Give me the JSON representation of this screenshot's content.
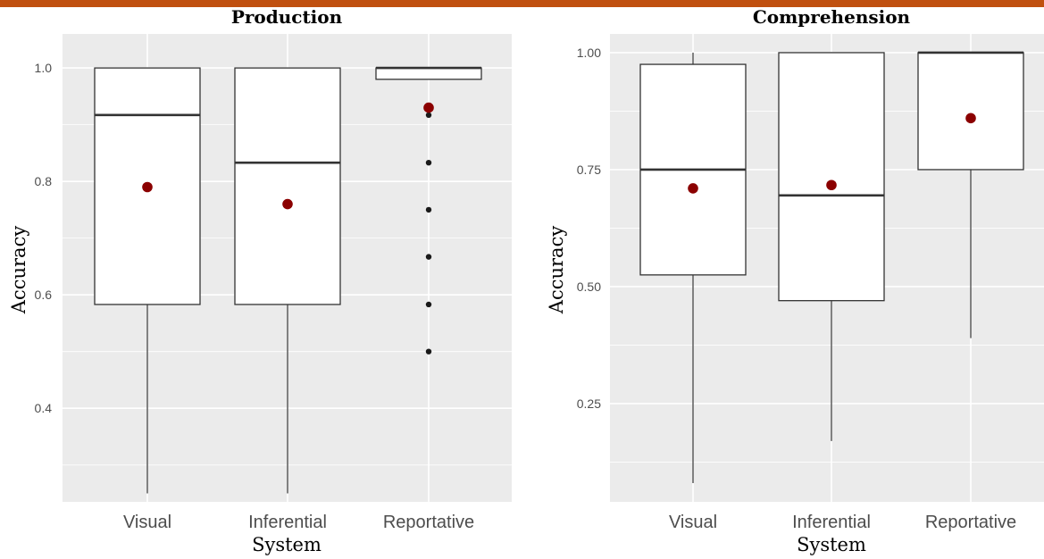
{
  "colors": {
    "accent_bar": "#c0500f",
    "panel_bg": "#ebebeb",
    "grid": "#ffffff",
    "mean_point": "#8b0000",
    "outlier": "#1a1a1a",
    "box_stroke": "#333333"
  },
  "chart_data": [
    {
      "type": "box",
      "title": "Production",
      "xlabel": "System",
      "ylabel": "Accuracy",
      "ylim": [
        0.235,
        1.06
      ],
      "yticks": [
        {
          "value": 0.4,
          "label": "0.4"
        },
        {
          "value": 0.6,
          "label": "0.6"
        },
        {
          "value": 0.8,
          "label": "0.8"
        },
        {
          "value": 1.0,
          "label": "1.0"
        }
      ],
      "grid": true,
      "categories": [
        "Visual",
        "Inferential",
        "Reportative"
      ],
      "boxes": [
        {
          "category": "Visual",
          "whisker_low": 0.25,
          "q1": 0.583,
          "median": 0.917,
          "q3": 1.0,
          "whisker_high": 1.0,
          "mean": 0.79,
          "outliers": []
        },
        {
          "category": "Inferential",
          "whisker_low": 0.25,
          "q1": 0.583,
          "median": 0.833,
          "q3": 1.0,
          "whisker_high": 1.0,
          "mean": 0.76,
          "outliers": []
        },
        {
          "category": "Reportative",
          "whisker_low": 0.98,
          "q1": 0.98,
          "median": 1.0,
          "q3": 1.0,
          "whisker_high": 1.0,
          "mean": 0.93,
          "outliers": [
            0.917,
            0.833,
            0.75,
            0.667,
            0.583,
            0.5
          ]
        }
      ]
    },
    {
      "type": "box",
      "title": "Comprehension",
      "xlabel": "System",
      "ylabel": "Accuracy",
      "ylim": [
        0.04,
        1.04
      ],
      "yticks": [
        {
          "value": 0.25,
          "label": "0.25"
        },
        {
          "value": 0.5,
          "label": "0.50"
        },
        {
          "value": 0.75,
          "label": "0.75"
        },
        {
          "value": 1.0,
          "label": "1.00"
        }
      ],
      "grid": true,
      "categories": [
        "Visual",
        "Inferential",
        "Reportative"
      ],
      "boxes": [
        {
          "category": "Visual",
          "whisker_low": 0.08,
          "q1": 0.525,
          "median": 0.75,
          "q3": 0.975,
          "whisker_high": 1.0,
          "mean": 0.71,
          "outliers": []
        },
        {
          "category": "Inferential",
          "whisker_low": 0.17,
          "q1": 0.47,
          "median": 0.695,
          "q3": 1.0,
          "whisker_high": 1.0,
          "mean": 0.717,
          "outliers": []
        },
        {
          "category": "Reportative",
          "whisker_low": 0.39,
          "q1": 0.75,
          "median": 1.0,
          "q3": 1.0,
          "whisker_high": 1.0,
          "mean": 0.86,
          "outliers": []
        }
      ]
    }
  ]
}
